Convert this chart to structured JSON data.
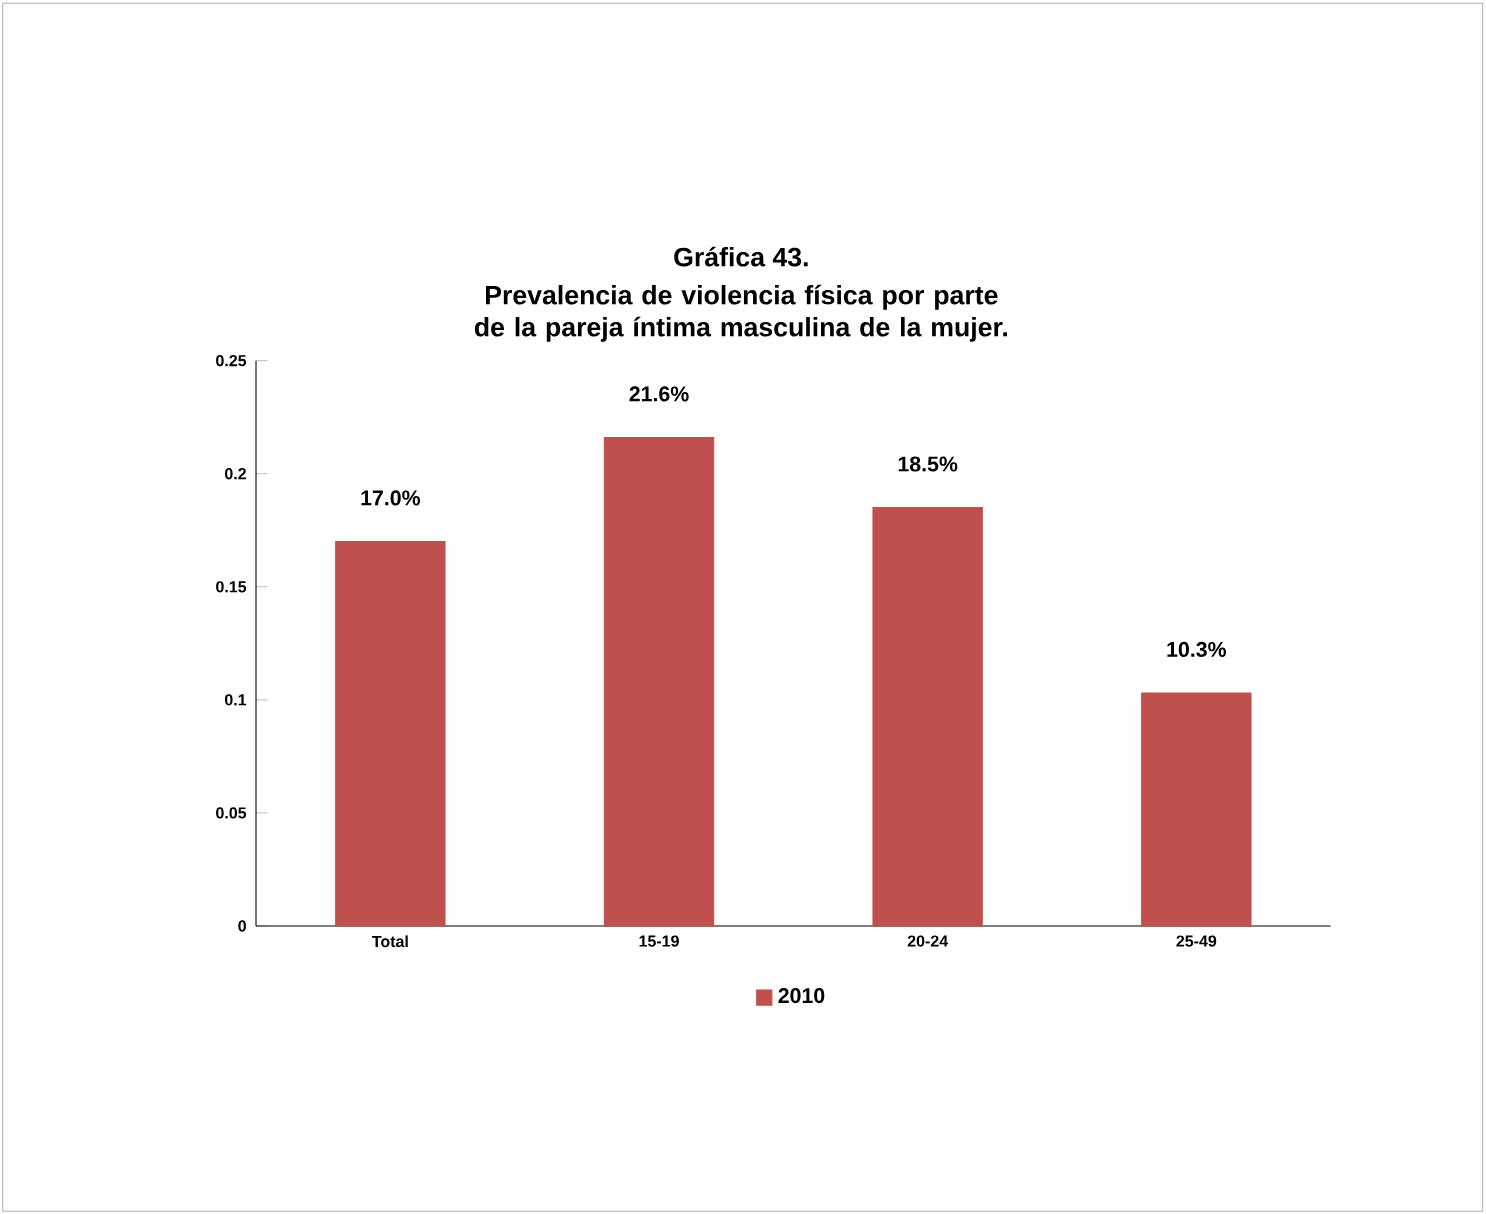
{
  "chart_data": {
    "type": "bar",
    "title": "Gráfica 43.",
    "subtitle": "Prevalencia de violencia física por parte de la pareja íntima masculina de la mujer.",
    "categories": [
      "Total",
      "15-19",
      "20-24",
      "25-49"
    ],
    "series": [
      {
        "name": "2010",
        "color": "#c0504d",
        "values": [
          0.17,
          0.216,
          0.185,
          0.103
        ],
        "value_labels": [
          "17.0%",
          "21.6%",
          "18.5%",
          "10.3%"
        ]
      }
    ],
    "ylim": [
      0,
      0.25
    ],
    "yticks": [
      0,
      0.05,
      0.1,
      0.15,
      0.2,
      0.25
    ],
    "grid": false,
    "legend": "bottom"
  }
}
